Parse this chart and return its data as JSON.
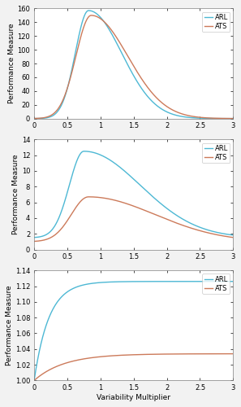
{
  "title": "",
  "xlabel": "Variability Multiplier",
  "ylabel": "Performance Measure",
  "xlim": [
    0,
    3
  ],
  "xticks": [
    0,
    0.5,
    1,
    1.5,
    2,
    2.5,
    3
  ],
  "panel1": {
    "ylim": [
      0,
      160
    ],
    "yticks": [
      0,
      20,
      40,
      60,
      80,
      100,
      120,
      140,
      160
    ]
  },
  "panel2": {
    "ylim": [
      0,
      14
    ],
    "yticks": [
      0,
      2,
      4,
      6,
      8,
      10,
      12,
      14
    ]
  },
  "panel3": {
    "ylim": [
      1.0,
      1.14
    ],
    "yticks": [
      1.0,
      1.02,
      1.04,
      1.06,
      1.08,
      1.1,
      1.12,
      1.14
    ]
  },
  "arl_color": "#4db8d4",
  "ats_color": "#cc7a5a",
  "line_width": 1.0,
  "legend_fontsize": 6,
  "tick_fontsize": 6,
  "label_fontsize": 6.5,
  "background_color": "#f2f2f2",
  "axes_background": "#ffffff"
}
